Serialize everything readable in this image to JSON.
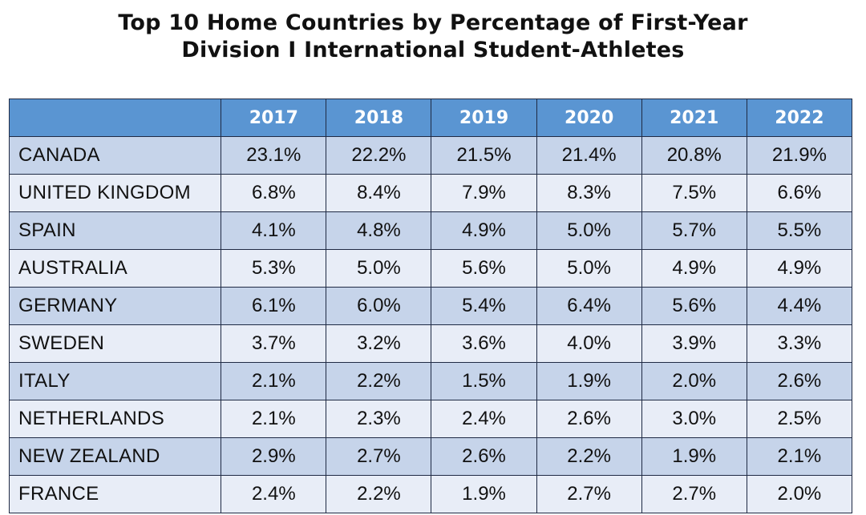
{
  "colors": {
    "header_bg": "#5a95d2",
    "header_text": "#ffffff",
    "row_dark": "#c6d4ea",
    "row_light": "#e8edf7",
    "border": "#1f2a44"
  },
  "chart_data": {
    "type": "table",
    "title": [
      "Top 10 Home Countries by Percentage of First-Year",
      "Division I International Student-Athletes"
    ],
    "columns": [
      "",
      "2017",
      "2018",
      "2019",
      "2020",
      "2021",
      "2022"
    ],
    "rows": [
      {
        "country": "CANADA",
        "values": [
          "23.1%",
          "22.2%",
          "21.5%",
          "21.4%",
          "20.8%",
          "21.9%"
        ]
      },
      {
        "country": "UNITED KINGDOM",
        "values": [
          "6.8%",
          "8.4%",
          "7.9%",
          "8.3%",
          "7.5%",
          "6.6%"
        ]
      },
      {
        "country": "SPAIN",
        "values": [
          "4.1%",
          "4.8%",
          "4.9%",
          "5.0%",
          "5.7%",
          "5.5%"
        ]
      },
      {
        "country": "AUSTRALIA",
        "values": [
          "5.3%",
          "5.0%",
          "5.6%",
          "5.0%",
          "4.9%",
          "4.9%"
        ]
      },
      {
        "country": "GERMANY",
        "values": [
          "6.1%",
          "6.0%",
          "5.4%",
          "6.4%",
          "5.6%",
          "4.4%"
        ]
      },
      {
        "country": "SWEDEN",
        "values": [
          "3.7%",
          "3.2%",
          "3.6%",
          "4.0%",
          "3.9%",
          "3.3%"
        ]
      },
      {
        "country": "ITALY",
        "values": [
          "2.1%",
          "2.2%",
          "1.5%",
          "1.9%",
          "2.0%",
          "2.6%"
        ]
      },
      {
        "country": "NETHERLANDS",
        "values": [
          "2.1%",
          "2.3%",
          "2.4%",
          "2.6%",
          "3.0%",
          "2.5%"
        ]
      },
      {
        "country": "NEW ZEALAND",
        "values": [
          "2.9%",
          "2.7%",
          "2.6%",
          "2.2%",
          "1.9%",
          "2.1%"
        ]
      },
      {
        "country": "FRANCE",
        "values": [
          "2.4%",
          "2.2%",
          "1.9%",
          "2.7%",
          "2.7%",
          "2.0%"
        ]
      }
    ]
  }
}
